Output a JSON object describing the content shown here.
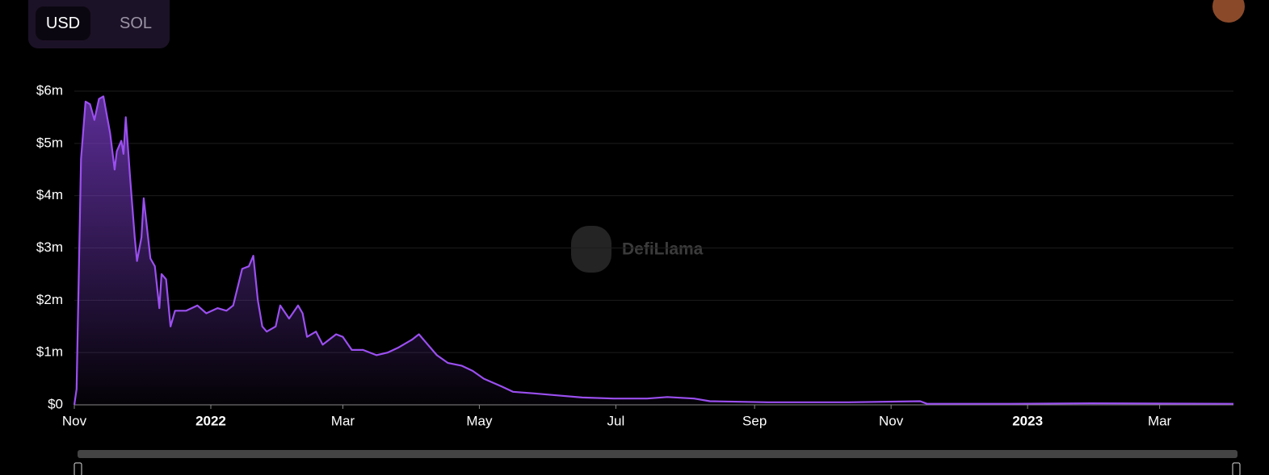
{
  "toggle": [
    "USD",
    "SOL"
  ],
  "watermark": "DefiLlama",
  "chart_data": {
    "type": "area",
    "color": "#9b4ff0",
    "x": [
      0,
      1,
      3,
      5,
      7,
      9,
      11,
      13,
      16,
      18,
      19,
      21,
      22,
      23,
      25,
      27,
      28,
      30,
      31,
      34,
      36,
      38,
      39,
      41,
      43,
      45,
      50,
      55,
      59,
      64,
      68,
      71,
      75,
      78,
      80,
      82,
      84,
      86,
      90,
      92,
      96,
      100,
      102,
      104,
      108,
      111,
      117,
      120,
      124,
      129,
      135,
      140,
      145,
      151,
      154,
      157,
      162,
      167,
      173,
      178,
      183,
      191,
      196,
      205,
      216,
      227,
      241,
      256,
      265,
      277,
      284,
      310,
      346,
      378,
      381,
      418,
      454,
      518
    ],
    "values": [
      0,
      0.3,
      4.7,
      5.8,
      5.75,
      5.45,
      5.85,
      5.9,
      5.2,
      4.5,
      4.85,
      5.05,
      4.8,
      5.5,
      4.3,
      3.2,
      2.75,
      3.2,
      3.95,
      2.8,
      2.65,
      1.85,
      2.5,
      2.4,
      1.5,
      1.8,
      1.8,
      1.9,
      1.75,
      1.85,
      1.8,
      1.9,
      2.6,
      2.65,
      2.85,
      2.0,
      1.5,
      1.4,
      1.5,
      1.9,
      1.65,
      1.9,
      1.75,
      1.3,
      1.4,
      1.15,
      1.35,
      1.3,
      1.05,
      1.05,
      0.95,
      1.0,
      1.1,
      1.25,
      1.35,
      1.2,
      0.95,
      0.8,
      0.75,
      0.65,
      0.5,
      0.35,
      0.25,
      0.22,
      0.18,
      0.14,
      0.12,
      0.12,
      0.15,
      0.12,
      0.07,
      0.05,
      0.05,
      0.07,
      0.02,
      0.02,
      0.03,
      0.02
    ],
    "xlim": [
      0,
      518
    ],
    "xticks": [
      {
        "value": 0,
        "label": "Nov"
      },
      {
        "value": 61,
        "label": "2022"
      },
      {
        "value": 120,
        "label": "Mar"
      },
      {
        "value": 181,
        "label": "May"
      },
      {
        "value": 242,
        "label": "Jul"
      },
      {
        "value": 304,
        "label": "Sep"
      },
      {
        "value": 365,
        "label": "Nov"
      },
      {
        "value": 426,
        "label": "2023"
      },
      {
        "value": 485,
        "label": "Mar"
      }
    ],
    "ylim": [
      0,
      6
    ],
    "yticks": [
      {
        "value": 0,
        "label": "$0"
      },
      {
        "value": 1,
        "label": "$1m"
      },
      {
        "value": 2,
        "label": "$2m"
      },
      {
        "value": 3,
        "label": "$3m"
      },
      {
        "value": 4,
        "label": "$4m"
      },
      {
        "value": 5,
        "label": "$5m"
      },
      {
        "value": 6,
        "label": "$6m"
      }
    ],
    "grid": true
  }
}
